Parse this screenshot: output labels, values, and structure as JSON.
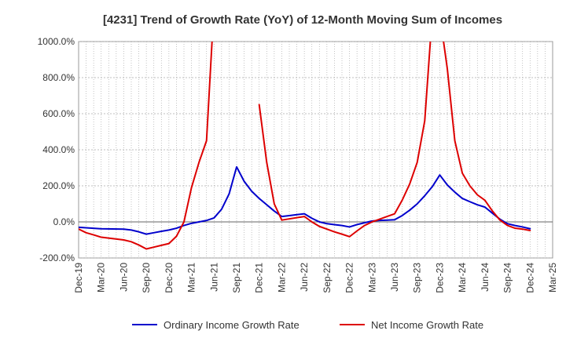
{
  "chart_data": {
    "type": "line",
    "title": "[4231]  Trend of Growth Rate (YoY) of 12-Month Moving Sum of Incomes",
    "xlabel": "",
    "ylabel": "",
    "ylim": [
      -200,
      1000
    ],
    "y_ticks": [
      -200,
      0,
      200,
      400,
      600,
      800,
      1000
    ],
    "y_tick_labels": [
      "-200.0%",
      "0.0%",
      "200.0%",
      "400.0%",
      "600.0%",
      "800.0%",
      "1000.0%"
    ],
    "x_range": [
      "2019-12",
      "2025-03"
    ],
    "x_tick_labels": [
      "Dec-19",
      "Mar-20",
      "Jun-20",
      "Sep-20",
      "Dec-20",
      "Mar-21",
      "Jun-21",
      "Sep-21",
      "Dec-21",
      "Mar-22",
      "Jun-22",
      "Sep-22",
      "Dec-22",
      "Mar-23",
      "Jun-23",
      "Sep-23",
      "Dec-23",
      "Mar-24",
      "Jun-24",
      "Sep-24",
      "Dec-24",
      "Mar-25"
    ],
    "grid": true,
    "legend_position": "bottom",
    "series": [
      {
        "name": "Ordinary Income Growth Rate",
        "color": "#0000cc",
        "points": [
          [
            "2019-12",
            -30
          ],
          [
            "2020-03",
            -38
          ],
          [
            "2020-06",
            -40
          ],
          [
            "2020-07",
            -45
          ],
          [
            "2020-08",
            -55
          ],
          [
            "2020-09",
            -68
          ],
          [
            "2020-10",
            -60
          ],
          [
            "2020-11",
            -52
          ],
          [
            "2020-12",
            -45
          ],
          [
            "2021-01",
            -35
          ],
          [
            "2021-02",
            -20
          ],
          [
            "2021-03",
            -8
          ],
          [
            "2021-04",
            0
          ],
          [
            "2021-05",
            8
          ],
          [
            "2021-06",
            22
          ],
          [
            "2021-07",
            70
          ],
          [
            "2021-08",
            155
          ],
          [
            "2021-09",
            305
          ],
          [
            "2021-10",
            225
          ],
          [
            "2021-11",
            170
          ],
          [
            "2021-12",
            130
          ],
          [
            "2022-01",
            95
          ],
          [
            "2022-02",
            60
          ],
          [
            "2022-03",
            30
          ],
          [
            "2022-04",
            35
          ],
          [
            "2022-05",
            40
          ],
          [
            "2022-06",
            45
          ],
          [
            "2022-07",
            20
          ],
          [
            "2022-08",
            0
          ],
          [
            "2022-09",
            -10
          ],
          [
            "2022-10",
            -15
          ],
          [
            "2022-11",
            -20
          ],
          [
            "2022-12",
            -28
          ],
          [
            "2023-01",
            -15
          ],
          [
            "2023-02",
            -5
          ],
          [
            "2023-03",
            5
          ],
          [
            "2023-04",
            8
          ],
          [
            "2023-05",
            10
          ],
          [
            "2023-06",
            12
          ],
          [
            "2023-07",
            35
          ],
          [
            "2023-08",
            65
          ],
          [
            "2023-09",
            100
          ],
          [
            "2023-10",
            145
          ],
          [
            "2023-11",
            195
          ],
          [
            "2023-12",
            260
          ],
          [
            "2024-01",
            205
          ],
          [
            "2024-02",
            165
          ],
          [
            "2024-03",
            130
          ],
          [
            "2024-04",
            112
          ],
          [
            "2024-05",
            95
          ],
          [
            "2024-06",
            82
          ],
          [
            "2024-07",
            48
          ],
          [
            "2024-08",
            15
          ],
          [
            "2024-09",
            -10
          ],
          [
            "2024-10",
            -20
          ],
          [
            "2024-11",
            -28
          ],
          [
            "2024-12",
            -38
          ]
        ]
      },
      {
        "name": "Net Income Growth Rate",
        "color": "#dd0000",
        "segments": [
          [
            [
              "2019-12",
              -40
            ],
            [
              "2020-01",
              -60
            ],
            [
              "2020-02",
              -72
            ],
            [
              "2020-03",
              -85
            ],
            [
              "2020-06",
              -100
            ],
            [
              "2020-07",
              -110
            ],
            [
              "2020-08",
              -128
            ],
            [
              "2020-09",
              -150
            ],
            [
              "2020-10",
              -140
            ],
            [
              "2020-11",
              -130
            ],
            [
              "2020-12",
              -120
            ],
            [
              "2021-01",
              -80
            ],
            [
              "2021-02",
              0
            ],
            [
              "2021-03",
              190
            ],
            [
              "2021-04",
              330
            ],
            [
              "2021-05",
              450
            ],
            [
              "2021-06",
              1200
            ]
          ],
          [
            [
              "2021-12",
              650
            ],
            [
              "2022-01",
              330
            ],
            [
              "2022-02",
              100
            ],
            [
              "2022-03",
              10
            ],
            [
              "2022-06",
              30
            ],
            [
              "2022-07",
              0
            ],
            [
              "2022-08",
              -25
            ],
            [
              "2022-09",
              -40
            ],
            [
              "2022-10",
              -55
            ],
            [
              "2022-11",
              -68
            ],
            [
              "2022-12",
              -82
            ],
            [
              "2023-01",
              -50
            ],
            [
              "2023-02",
              -20
            ],
            [
              "2023-03",
              0
            ],
            [
              "2023-04",
              15
            ],
            [
              "2023-05",
              30
            ],
            [
              "2023-06",
              45
            ],
            [
              "2023-07",
              120
            ],
            [
              "2023-08",
              210
            ],
            [
              "2023-09",
              330
            ],
            [
              "2023-10",
              560
            ],
            [
              "2023-11",
              1150
            ]
          ],
          [
            [
              "2023-12",
              1150
            ],
            [
              "2024-01",
              850
            ],
            [
              "2024-02",
              450
            ],
            [
              "2024-03",
              270
            ],
            [
              "2024-04",
              200
            ],
            [
              "2024-05",
              150
            ],
            [
              "2024-06",
              120
            ],
            [
              "2024-07",
              60
            ],
            [
              "2024-08",
              10
            ],
            [
              "2024-09",
              -20
            ],
            [
              "2024-10",
              -35
            ],
            [
              "2024-11",
              -40
            ],
            [
              "2024-12",
              -48
            ]
          ]
        ]
      }
    ]
  }
}
